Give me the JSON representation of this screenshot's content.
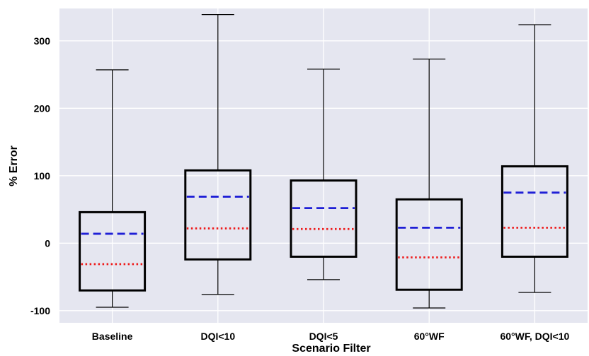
{
  "chart_data": {
    "type": "box",
    "xlabel": "Scenario Filter",
    "ylabel": "% Error",
    "ylim": [
      -118,
      348
    ],
    "yticks": [
      -100,
      0,
      100,
      200,
      300
    ],
    "ytick_labels": [
      "-100",
      "0",
      "100",
      "200",
      "300"
    ],
    "grid": true,
    "colors": {
      "background": "#e5e6f0",
      "grid": "#ffffff",
      "box": "#000000",
      "mean_line": "#1f1fd6",
      "median_line": "#ee1c1c"
    },
    "categories": [
      "Baseline",
      "DQI<10",
      "DQI<5",
      "60°WF",
      "60°WF, DQI<10"
    ],
    "boxes": [
      {
        "whisker_low": -95,
        "q1": -70,
        "median": -31,
        "mean": 14,
        "q3": 46,
        "whisker_high": 257
      },
      {
        "whisker_low": -76,
        "q1": -24,
        "median": 22,
        "mean": 69,
        "q3": 108,
        "whisker_high": 339
      },
      {
        "whisker_low": -54,
        "q1": -20,
        "median": 21,
        "mean": 52,
        "q3": 93,
        "whisker_high": 258
      },
      {
        "whisker_low": -96,
        "q1": -69,
        "median": -21,
        "mean": 23,
        "q3": 65,
        "whisker_high": 273
      },
      {
        "whisker_low": -73,
        "q1": -20,
        "median": 23,
        "mean": 75,
        "q3": 114,
        "whisker_high": 324
      }
    ]
  }
}
